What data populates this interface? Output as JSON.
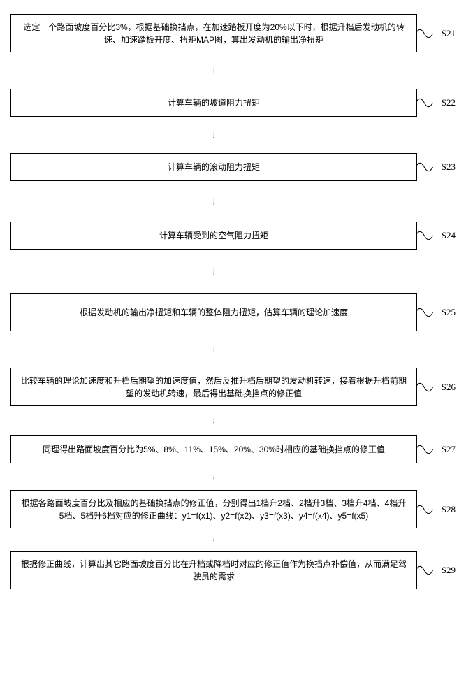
{
  "flowchart": {
    "background_color": "#ffffff",
    "border_color": "#000000",
    "box_font_size": 12,
    "label_font_size": 13,
    "steps": [
      {
        "id": "S21",
        "text": "选定一个路面坡度百分比3%，根据基础换挡点，在加速踏板开度为20%以下时，根据升档后发动机的转速、加速踏板开度、扭矩MAP图，算出发动机的输出净扭矩",
        "tall": true,
        "arrow_height": 52
      },
      {
        "id": "S22",
        "text": "计算车辆的坡道阻力扭矩",
        "tall": false,
        "arrow_height": 52
      },
      {
        "id": "S23",
        "text": "计算车辆的滚动阻力扭矩",
        "tall": false,
        "arrow_height": 58
      },
      {
        "id": "S24",
        "text": "计算车辆受到的空气阻力扭矩",
        "tall": false,
        "arrow_height": 62
      },
      {
        "id": "S25",
        "text": "根据发动机的输出净扭矩和车辆的整体阻力扭矩，估算车辆的理论加速度",
        "tall": true,
        "arrow_height": 52
      },
      {
        "id": "S26",
        "text": "比较车辆的理论加速度和升档后期望的加速度值，然后反推升档后期望的发动机转速，接着根据升档前期望的发动机转速，最后得出基础换挡点的修正值",
        "tall": true,
        "arrow_height": 42
      },
      {
        "id": "S27",
        "text": "同理得出路面坡度百分比为5%、8%、11%、15%、20%、30%时相应的基础换挡点的修正值",
        "tall": false,
        "arrow_height": 38
      },
      {
        "id": "S28",
        "text": "根据各路面坡度百分比及相应的基础换挡点的修正值，分别得出1档升2档、2档升3档、3档升4档、4档升5档、5档升6档对应的修正曲线：y1=f(x1)、y2=f(x2)、y3=f(x3)、y4=f(x4)、y5=f(x5)",
        "tall": true,
        "arrow_height": 32
      },
      {
        "id": "S29",
        "text": "根据修正曲线，计算出其它路面坡度百分比在升档或降档时对应的修正值作为换挡点补偿值，从而满足驾驶员的需求",
        "tall": true,
        "arrow_height": 0
      }
    ]
  }
}
